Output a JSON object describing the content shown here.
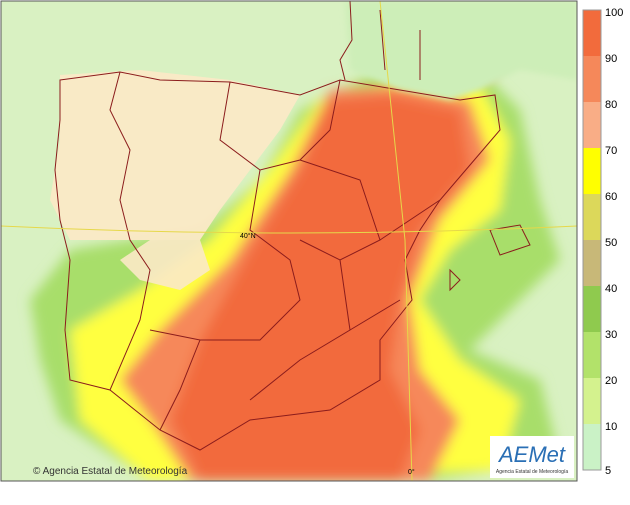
{
  "map": {
    "lat_label": "40°N",
    "lon_label": "0°",
    "credit": "© Agencia Estatal de Meteorología"
  },
  "logo": {
    "name": "AEMet",
    "subtitle": "Agencia Estatal de Meteorología"
  },
  "legend": {
    "labels": [
      "100",
      "90",
      "80",
      "70",
      "60",
      "50",
      "40",
      "30",
      "20",
      "10",
      "5"
    ],
    "colors": [
      "#f26b3c",
      "#f5885a",
      "#f9ad86",
      "#ffff00",
      "#dcd85a",
      "#c8b878",
      "#8fca4e",
      "#b2e26a",
      "#d4f28e",
      "#caf2c6"
    ]
  }
}
